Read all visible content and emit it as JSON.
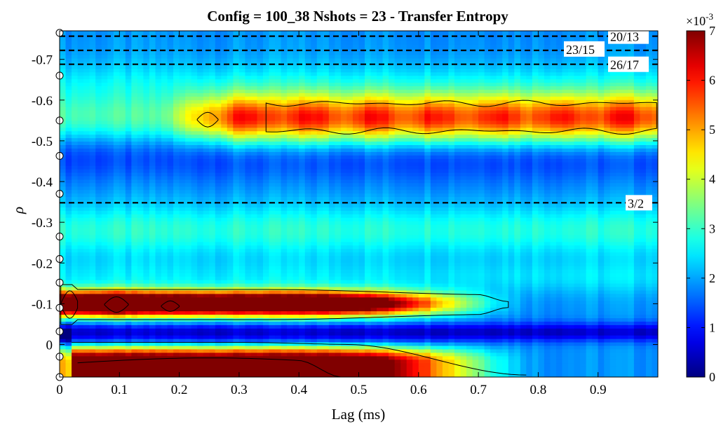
{
  "chart_data": {
    "type": "heatmap",
    "title": "Config = 100_38 Nshots = 23 - Transfer Entropy",
    "xlabel": "Lag (ms)",
    "ylabel": "ρ",
    "xlim": [
      0,
      1.0
    ],
    "ylim": [
      0.08,
      -0.77
    ],
    "x_ticks": [
      0,
      0.1,
      0.2,
      0.3,
      0.4,
      0.5,
      0.6,
      0.7,
      0.8,
      0.9
    ],
    "x_tick_labels": [
      "0",
      "0.1",
      "0.2",
      "0.3",
      "0.4",
      "0.5",
      "0.6",
      "0.7",
      "0.8",
      "0.9"
    ],
    "y_ticks": [
      0,
      -0.1,
      -0.2,
      -0.3,
      -0.4,
      -0.5,
      -0.6,
      -0.7
    ],
    "y_tick_labels": [
      "0",
      "-0.1",
      "-0.2",
      "-0.3",
      "-0.4",
      "-0.5",
      "-0.6",
      "-0.7"
    ],
    "colormap": "jet",
    "colorbar": {
      "min": 0,
      "max": 7,
      "ticks": [
        0,
        1,
        2,
        3,
        4,
        5,
        6,
        7
      ],
      "tick_labels": [
        "0",
        "1",
        "2",
        "3",
        "4",
        "5",
        "6",
        "7"
      ],
      "exponent_label": "×10",
      "exponent": "-3"
    },
    "rational_surfaces": [
      {
        "label": "20/13",
        "rho": -0.757
      },
      {
        "label": "23/15",
        "rho": -0.722
      },
      {
        "label": "26/17",
        "rho": -0.688
      },
      {
        "label": "3/2",
        "rho": -0.348
      }
    ],
    "channel_markers_rho": [
      -0.765,
      -0.66,
      -0.55,
      -0.463,
      -0.37,
      -0.265,
      -0.21,
      -0.152,
      -0.09,
      -0.032,
      0.03,
      0.08
    ],
    "bands": [
      {
        "name": "lower-edge band",
        "rho_range": [
          0.0,
          0.08
        ],
        "peak_value": 7.0,
        "lag_extent_ms": 0.75
      },
      {
        "name": "dark band",
        "rho_center": -0.03,
        "value": 0.5
      },
      {
        "name": "strong band",
        "rho_center": -0.1,
        "peak_value": 7.5,
        "lag_extent_ms": 0.75
      },
      {
        "name": "mid band",
        "rho_center": -0.28,
        "value": 2.8
      },
      {
        "name": "upper band",
        "rho_center": -0.555,
        "peak_value": 4.6,
        "lag_range_ms": [
          0.22,
          1.0
        ]
      }
    ]
  }
}
